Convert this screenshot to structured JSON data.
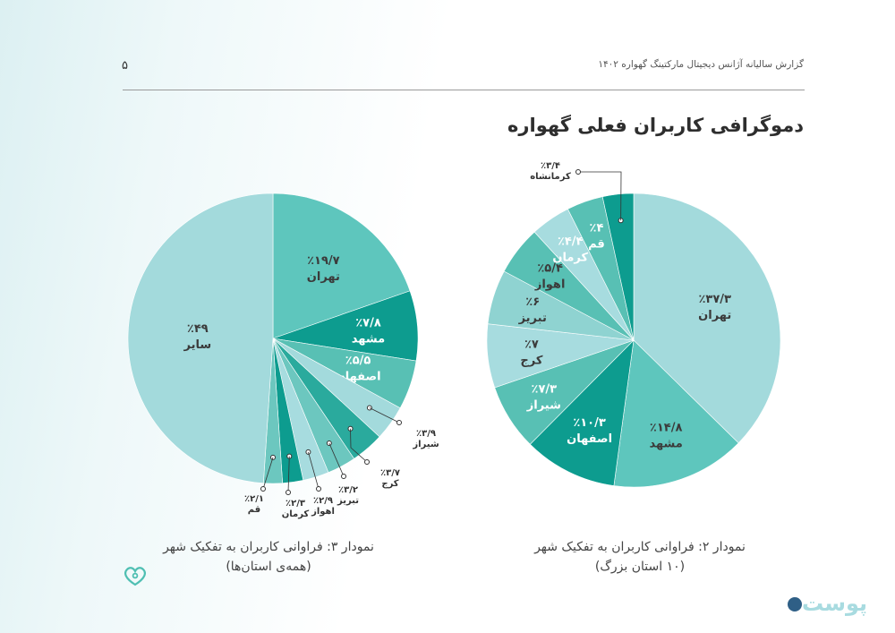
{
  "header": {
    "report_title": "گزارش سالیانه آژانس دیجیتال مارکتینگ گهواره ۱۴۰۲",
    "page_number": "۵"
  },
  "page_title": "دموگرافی کاربران فعلی گهواره",
  "colors": {
    "c1": "#a3dadc",
    "c2": "#5ec6bd",
    "c3": "#0d9c8f",
    "c4": "#58c0b4",
    "c5": "#a7dcdf",
    "c6": "#2aaa9d",
    "c7": "#6cc7bf",
    "c8": "#8fd3d1"
  },
  "chart_data": [
    {
      "type": "pie",
      "title": "نمودار ۳: فراوانی کاربران به تفکیک شهر",
      "subtitle": "(همه‌ی استان‌ها)",
      "slices": [
        {
          "name": "تهران",
          "value": 19.7,
          "label": "٪۱۹/۷"
        },
        {
          "name": "مشهد",
          "value": 7.8,
          "label": "٪۷/۸"
        },
        {
          "name": "اصفهان",
          "value": 5.5,
          "label": "٪۵/۵"
        },
        {
          "name": "شیراز",
          "value": 3.9,
          "label": "٪۳/۹"
        },
        {
          "name": "کرج",
          "value": 3.7,
          "label": "٪۳/۷"
        },
        {
          "name": "تبریز",
          "value": 3.2,
          "label": "٪۳/۲"
        },
        {
          "name": "اهواز",
          "value": 2.9,
          "label": "٪۲/۹"
        },
        {
          "name": "کرمان",
          "value": 2.3,
          "label": "٪۲/۳"
        },
        {
          "name": "قم",
          "value": 2.1,
          "label": "٪۲/۱"
        },
        {
          "name": "سایر",
          "value": 49,
          "label": "٪۴۹"
        }
      ]
    },
    {
      "type": "pie",
      "title": "نمودار ۲: فراوانی کاربران به تفکیک شهر",
      "subtitle": "(۱۰ استان بزرگ)",
      "slices": [
        {
          "name": "تهران",
          "value": 37.3,
          "label": "٪۳۷/۳"
        },
        {
          "name": "مشهد",
          "value": 14.8,
          "label": "٪۱۴/۸"
        },
        {
          "name": "اصفهان",
          "value": 10.3,
          "label": "٪۱۰/۳"
        },
        {
          "name": "شیراز",
          "value": 7.3,
          "label": "٪۷/۳"
        },
        {
          "name": "کرج",
          "value": 7,
          "label": "٪۷"
        },
        {
          "name": "تبریز",
          "value": 6,
          "label": "٪۶"
        },
        {
          "name": "اهواز",
          "value": 5.4,
          "label": "٪۵/۴"
        },
        {
          "name": "کرمان",
          "value": 4.4,
          "label": "٪۴/۴"
        },
        {
          "name": "قم",
          "value": 4,
          "label": "٪۴"
        },
        {
          "name": "کرمانشاه",
          "value": 3.4,
          "label": "٪۳/۴"
        }
      ]
    }
  ],
  "footer": {
    "brand": "پوست"
  }
}
